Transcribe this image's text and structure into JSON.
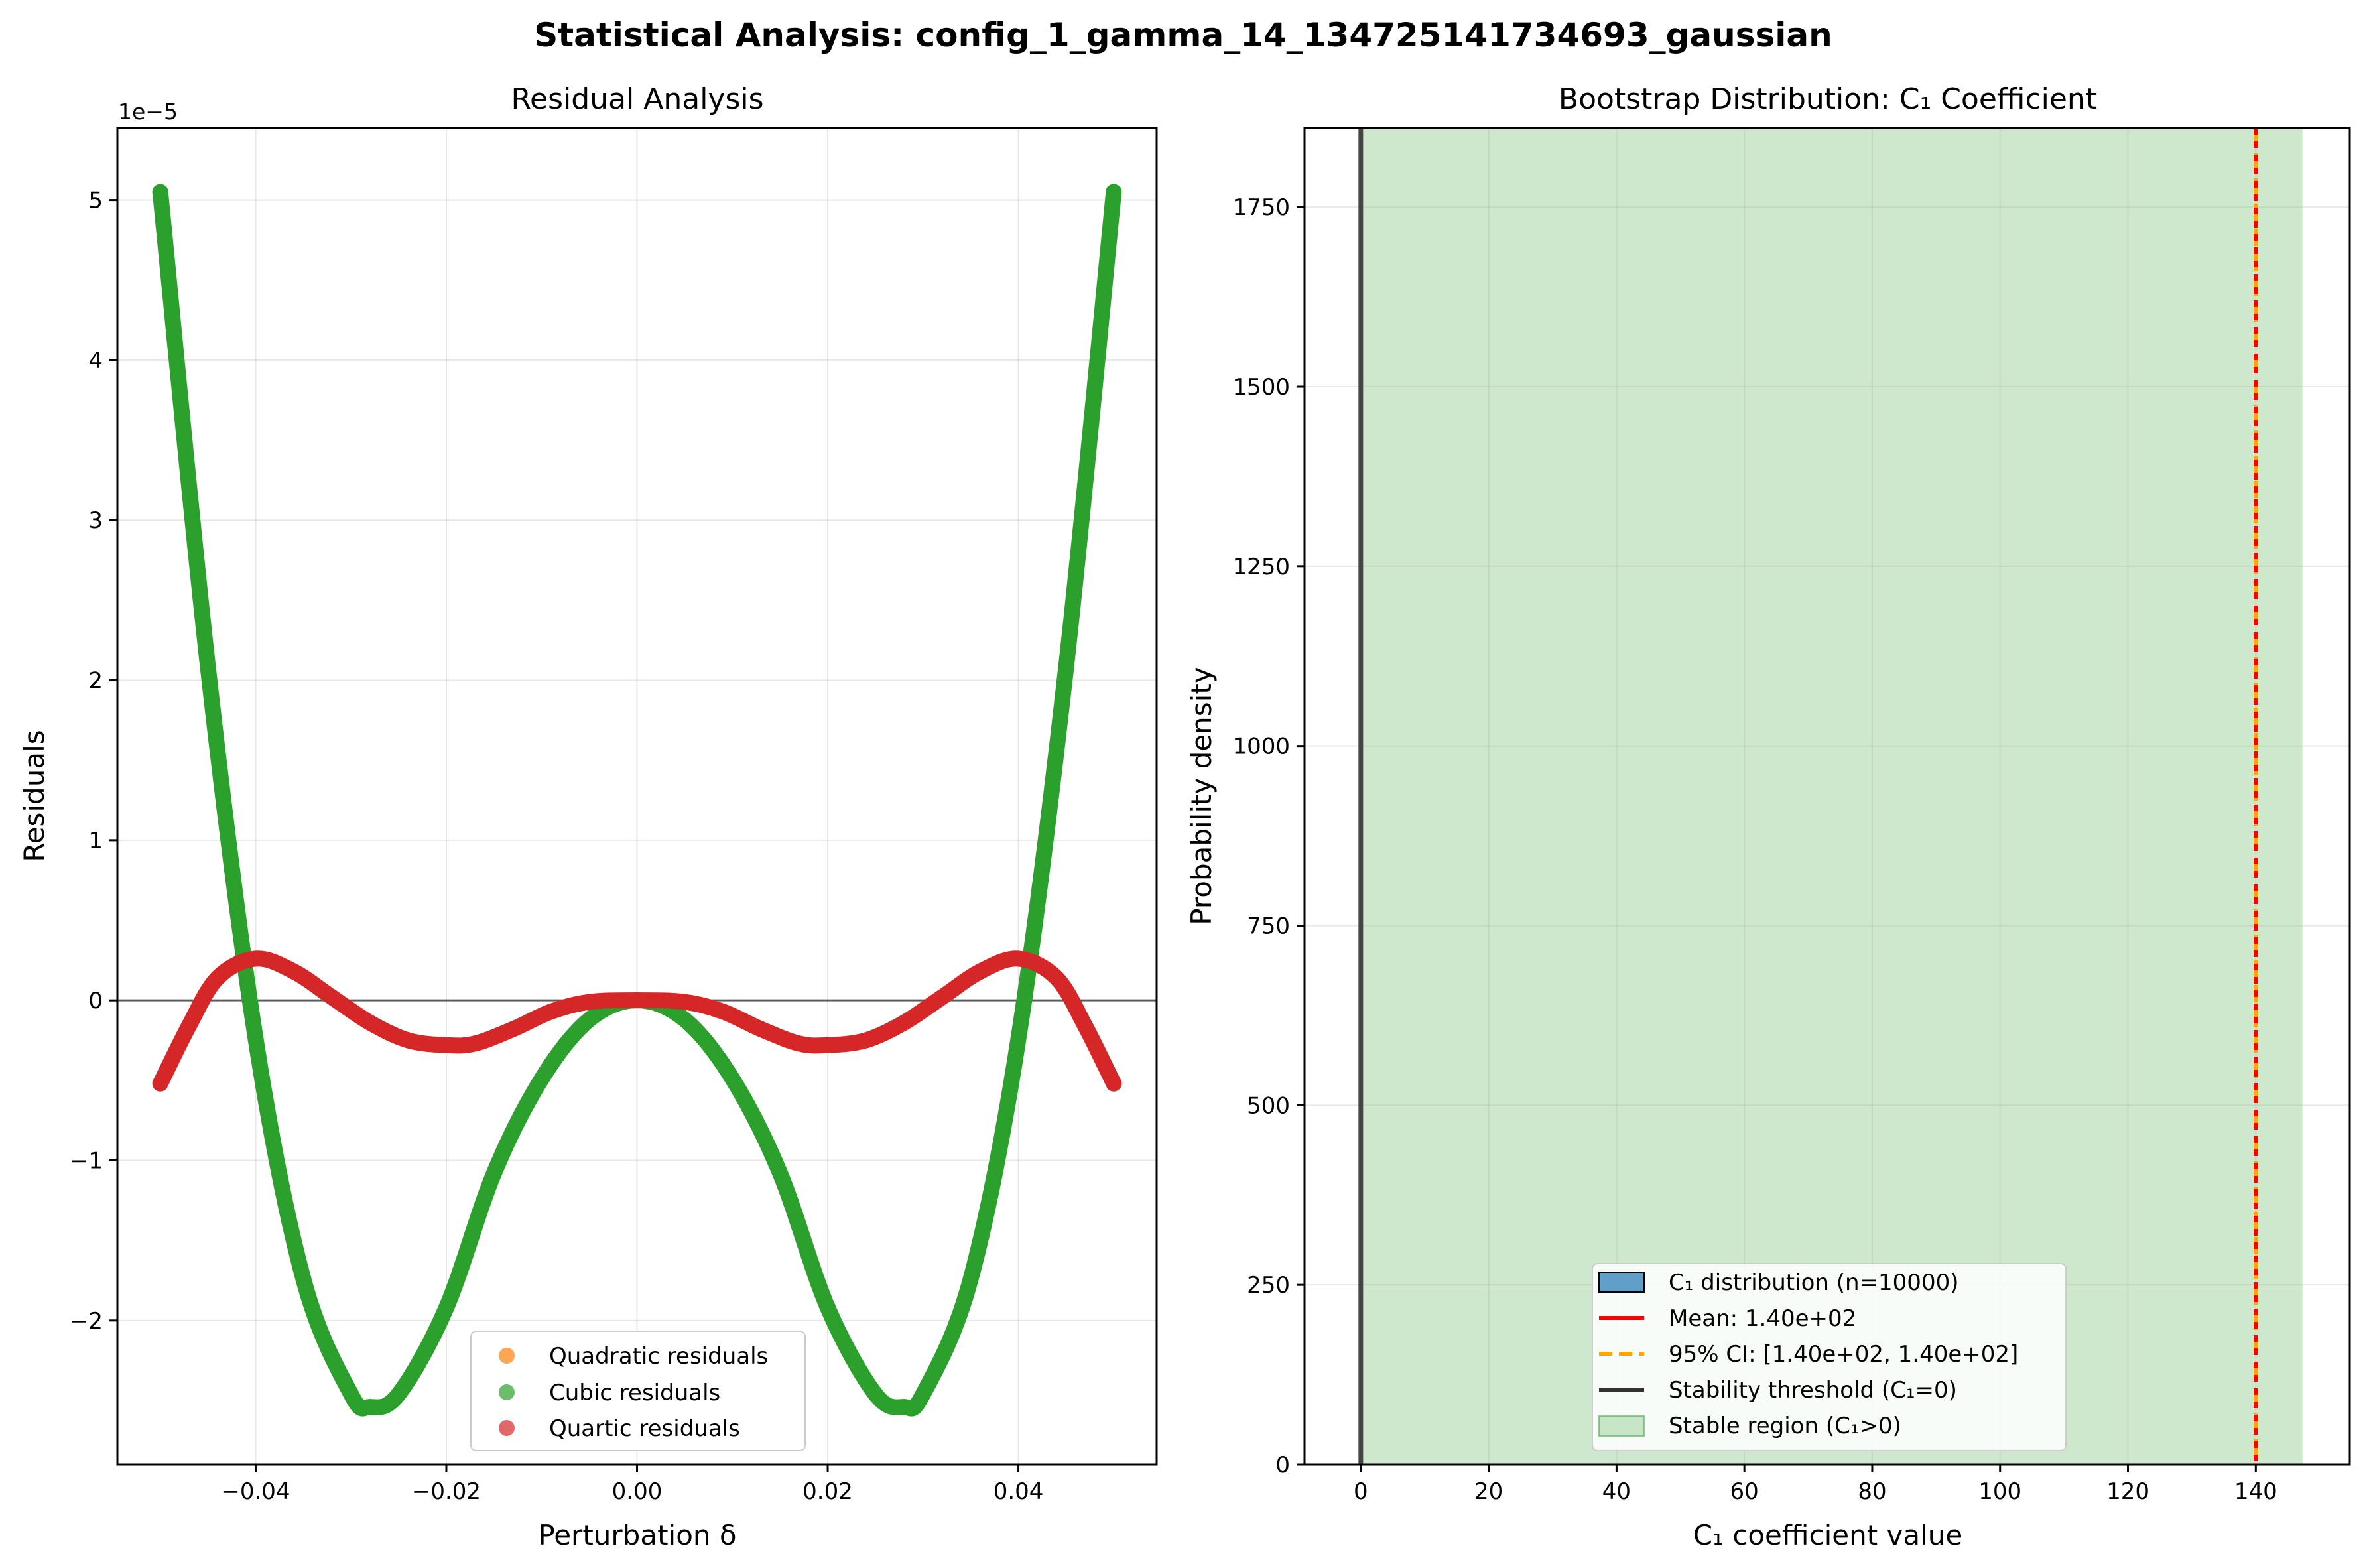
{
  "figure": {
    "title": "Statistical Analysis: config_1_gamma_14_134725141734693_gaussian"
  },
  "colors": {
    "quadratic": "#ff7f0e",
    "cubic": "#2ca02c",
    "quartic": "#d62728",
    "hist": "#1f77b4",
    "mean": "#ff0000",
    "ci": "#ffa500",
    "threshold": "#333333",
    "stable": "#2ca02c"
  },
  "chart_data": [
    {
      "type": "scatter",
      "title": "Residual Analysis",
      "xlabel": "Perturbation δ",
      "ylabel": "Residuals",
      "offset_text": "1e−5",
      "xlim": [
        -0.0545,
        0.0545
      ],
      "ylim": [
        -2.9e-05,
        5.45e-05
      ],
      "xticks": [
        -0.04,
        -0.02,
        0.0,
        0.02,
        0.04
      ],
      "xtick_labels": [
        "−0.04",
        "−0.02",
        "0.00",
        "0.02",
        "0.04"
      ],
      "yticks": [
        -2e-05,
        -1e-05,
        0,
        1e-05,
        2e-05,
        3e-05,
        4e-05,
        5e-05
      ],
      "ytick_labels": [
        "−2",
        "−1",
        "0",
        "1",
        "2",
        "3",
        "4",
        "5"
      ],
      "grid": true,
      "hline": 0,
      "legend_position": "bottom-center",
      "series": [
        {
          "name": "Quadratic residuals",
          "x": [],
          "y": []
        },
        {
          "name": "Cubic residuals",
          "x": [
            -0.05,
            -0.045,
            -0.04,
            -0.035,
            -0.03,
            -0.028,
            -0.025,
            -0.02,
            -0.015,
            -0.01,
            -0.005,
            0.0,
            0.005,
            0.01,
            0.015,
            0.02,
            0.025,
            0.028,
            0.03,
            0.035,
            0.04,
            0.045,
            0.05
          ],
          "y": [
            5.05e-05,
            2.08e-05,
            -2.4e-06,
            -1.74e-05,
            -2.46e-05,
            -2.54e-05,
            -2.46e-05,
            -1.92e-05,
            -1.08e-05,
            -4.9e-06,
            -1.2e-06,
            0.0,
            -1.2e-06,
            -4.9e-06,
            -1.08e-05,
            -1.92e-05,
            -2.46e-05,
            -2.54e-05,
            -2.46e-05,
            -1.74e-05,
            -2.4e-06,
            2.08e-05,
            5.05e-05
          ]
        },
        {
          "name": "Quartic residuals",
          "x": [
            -0.05,
            -0.047,
            -0.044,
            -0.04,
            -0.036,
            -0.032,
            -0.028,
            -0.024,
            -0.02,
            -0.017,
            -0.013,
            -0.009,
            -0.005,
            0.0,
            0.005,
            0.009,
            0.013,
            0.017,
            0.02,
            0.024,
            0.028,
            0.032,
            0.036,
            0.04,
            0.044,
            0.047,
            0.05
          ],
          "y": [
            -5.2e-06,
            -1.6e-06,
            1.4e-06,
            2.6e-06,
            1.8e-06,
            2e-07,
            -1.4e-06,
            -2.5e-06,
            -2.8e-06,
            -2.7e-06,
            -1.8e-06,
            -7e-07,
            -1e-07,
            0.0,
            -1e-07,
            -7e-07,
            -1.8e-06,
            -2.7e-06,
            -2.8e-06,
            -2.5e-06,
            -1.4e-06,
            2e-07,
            1.8e-06,
            2.6e-06,
            1.4e-06,
            -1.6e-06,
            -5.2e-06
          ]
        }
      ]
    },
    {
      "type": "bar",
      "title": "Bootstrap Distribution: C₁ Coefficient",
      "xlabel": "C₁ coefficient value",
      "ylabel": "Probability density",
      "xlim": [
        -8.8,
        154.7
      ],
      "ylim": [
        0,
        1860
      ],
      "xticks": [
        0,
        20,
        40,
        60,
        80,
        100,
        120,
        140
      ],
      "xtick_labels": [
        "0",
        "20",
        "40",
        "60",
        "80",
        "100",
        "120",
        "140"
      ],
      "yticks": [
        0,
        250,
        500,
        750,
        1000,
        1250,
        1500,
        1750
      ],
      "ytick_labels": [
        "0",
        "250",
        "500",
        "750",
        "1000",
        "1250",
        "1500",
        "1750"
      ],
      "grid": true,
      "legend_position": "bottom-center",
      "stable_region": [
        0,
        147.3
      ],
      "threshold": 0,
      "mean": 140.0,
      "ci": [
        140.0,
        140.0
      ],
      "legend": [
        "C₁ distribution (n=10000)",
        "Mean: 1.40e+02",
        "95% CI: [1.40e+02, 1.40e+02]",
        "Stability threshold (C₁=0)",
        "Stable region (C₁>0)"
      ]
    }
  ]
}
